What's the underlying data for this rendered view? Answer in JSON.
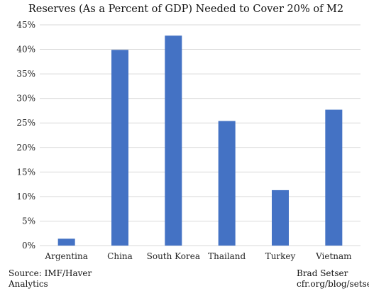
{
  "chart_data": {
    "type": "bar",
    "title": "Reserves (As a Percent of GDP) Needed to Cover 20% of M2",
    "categories": [
      "Argentina",
      "China",
      "South Korea",
      "Thailand",
      "Turkey",
      "Vietnam"
    ],
    "series": [
      {
        "values": [
          1.4,
          39.9,
          42.8,
          25.4,
          11.3,
          27.7
        ]
      }
    ],
    "ylim": [
      0,
      45
    ],
    "yticks": [
      0,
      5,
      10,
      15,
      20,
      25,
      30,
      35,
      40,
      45
    ],
    "ytick_labels": [
      "0%",
      "5%",
      "10%",
      "15%",
      "20%",
      "25%",
      "30%",
      "35%",
      "40%",
      "45%"
    ],
    "grid": true,
    "bar_color": "#4472c4",
    "grid_color": "#d9d9d9"
  },
  "footer": {
    "source": "Source: IMF/Haver Analytics",
    "author": "Brad Setser",
    "url": "cfr.org/blog/setser"
  }
}
